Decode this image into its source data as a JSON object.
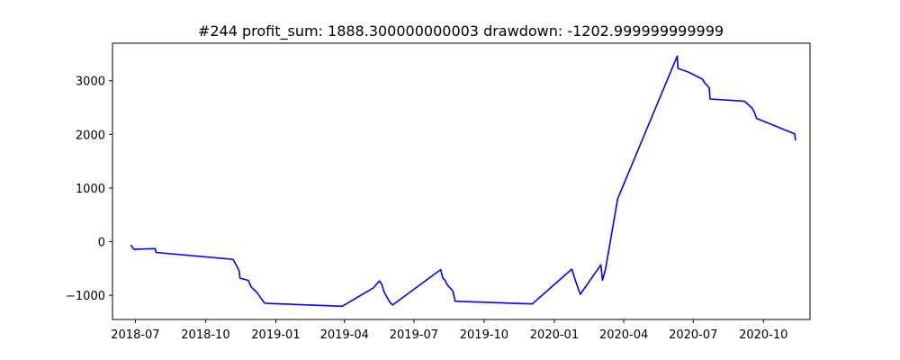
{
  "chart_data": {
    "type": "line",
    "title": "#244   profit_sum: 1888.300000000003 drawdown: -1202.999999999999",
    "xlabel": "",
    "ylabel": "",
    "x_scale": "date",
    "xlim": [
      "2018-06-01",
      "2020-12-01"
    ],
    "ylim": [
      -1450,
      3700
    ],
    "grid": false,
    "line_color": "#0000ff",
    "x_ticks": [
      {
        "date": "2018-07-01",
        "label": "2018-07"
      },
      {
        "date": "2018-10-01",
        "label": "2018-10"
      },
      {
        "date": "2019-01-01",
        "label": "2019-01"
      },
      {
        "date": "2019-04-01",
        "label": "2019-04"
      },
      {
        "date": "2019-07-01",
        "label": "2019-07"
      },
      {
        "date": "2019-10-01",
        "label": "2019-10"
      },
      {
        "date": "2020-01-01",
        "label": "2020-01"
      },
      {
        "date": "2020-04-01",
        "label": "2020-04"
      },
      {
        "date": "2020-07-01",
        "label": "2020-07"
      },
      {
        "date": "2020-10-01",
        "label": "2020-10"
      }
    ],
    "y_ticks": [
      {
        "value": -1000,
        "label": "−1000"
      },
      {
        "value": 0,
        "label": "0"
      },
      {
        "value": 1000,
        "label": "1000"
      },
      {
        "value": 2000,
        "label": "2000"
      },
      {
        "value": 3000,
        "label": "3000"
      }
    ],
    "series": [
      {
        "x": [
          "2018-06-25",
          "2018-06-29",
          "2018-07-27",
          "2018-07-28",
          "2018-11-06",
          "2018-11-11",
          "2018-11-14",
          "2018-11-15",
          "2018-11-26",
          "2018-11-30",
          "2018-12-07",
          "2018-12-17",
          "2018-12-20",
          "2019-03-29",
          "2019-05-09",
          "2019-05-13",
          "2019-05-17",
          "2019-05-20",
          "2019-05-23",
          "2019-05-30",
          "2019-06-03",
          "2019-08-05",
          "2019-08-08",
          "2019-08-11",
          "2019-08-13",
          "2019-08-21",
          "2019-08-24",
          "2019-12-03",
          "2020-01-24",
          "2020-01-29",
          "2020-02-04",
          "2020-03-02",
          "2020-03-04",
          "2020-03-08",
          "2020-03-24",
          "2020-06-10",
          "2020-06-11",
          "2020-06-25",
          "2020-07-13",
          "2020-07-16",
          "2020-07-22",
          "2020-07-23",
          "2020-09-06",
          "2020-09-16",
          "2020-09-19",
          "2020-09-22",
          "2020-11-11",
          "2020-11-12"
        ],
        "y": [
          -60,
          -140,
          -130,
          -200,
          -330,
          -460,
          -550,
          -680,
          -720,
          -850,
          -940,
          -1140,
          -1150,
          -1203,
          -860,
          -790,
          -730,
          -800,
          -940,
          -1120,
          -1180,
          -520,
          -680,
          -720,
          -790,
          -920,
          -1110,
          -1160,
          -510,
          -740,
          -980,
          -430,
          -720,
          -510,
          800,
          3460,
          3230,
          3160,
          3030,
          2960,
          2870,
          2660,
          2620,
          2490,
          2420,
          2300,
          2010,
          1888
        ]
      }
    ]
  }
}
